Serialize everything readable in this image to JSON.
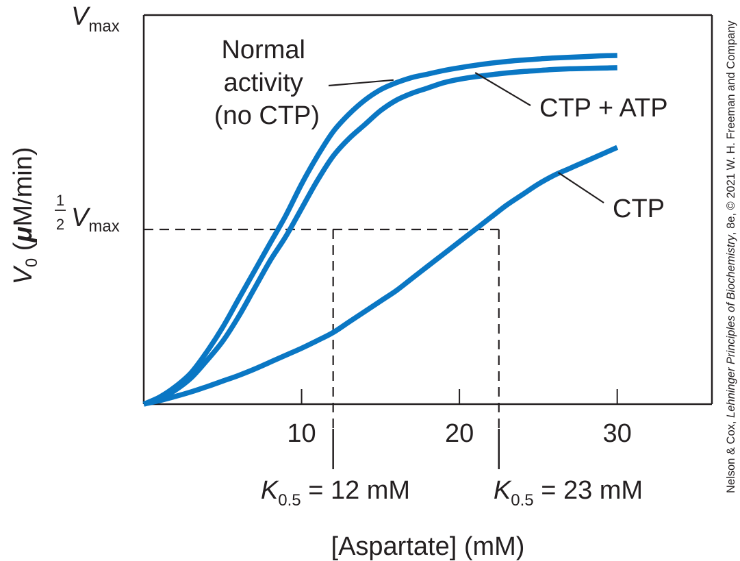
{
  "chart_data": {
    "type": "line",
    "xlabel": "[Aspartate] (mM)",
    "ylabel": "V0 (μM/min)",
    "ylabel_parts": {
      "v": "V",
      "sub": "0",
      "rest_prefix": " (",
      "mu": "μ",
      "rest_suffix": "M/min)"
    },
    "xlim": [
      0,
      36
    ],
    "ylim": [
      0,
      1
    ],
    "x_ticks": [
      10,
      20,
      30
    ],
    "x_tick_labels": [
      "10",
      "20",
      "30"
    ],
    "y_tick_labels": {
      "vmax": {
        "v": "V",
        "sub": "max"
      },
      "half_vmax": {
        "num": "1",
        "den": "2",
        "v": "V",
        "sub": "max"
      }
    },
    "x": [
      0,
      1,
      2,
      3,
      4,
      5,
      6,
      7,
      8,
      9,
      10,
      11,
      12,
      13,
      14,
      15,
      16,
      17,
      18,
      19,
      20,
      21,
      22,
      23,
      24,
      25,
      26,
      27,
      28,
      29,
      30
    ],
    "series": [
      {
        "name": "Normal activity (no CTP)",
        "color": "#0a77c4",
        "values": [
          0.0,
          0.02,
          0.05,
          0.09,
          0.15,
          0.22,
          0.3,
          0.38,
          0.46,
          0.54,
          0.63,
          0.71,
          0.78,
          0.83,
          0.87,
          0.9,
          0.92,
          0.935,
          0.945,
          0.955,
          0.963,
          0.97,
          0.976,
          0.981,
          0.985,
          0.988,
          0.991,
          0.993,
          0.995,
          0.997,
          0.998
        ]
      },
      {
        "name": "CTP + ATP",
        "color": "#0a77c4",
        "values": [
          0.0,
          0.015,
          0.04,
          0.075,
          0.125,
          0.18,
          0.25,
          0.33,
          0.41,
          0.48,
          0.56,
          0.64,
          0.71,
          0.76,
          0.8,
          0.84,
          0.87,
          0.89,
          0.905,
          0.92,
          0.93,
          0.937,
          0.943,
          0.948,
          0.952,
          0.955,
          0.958,
          0.96,
          0.961,
          0.962,
          0.963
        ]
      },
      {
        "name": "CTP",
        "color": "#0a77c4",
        "values": [
          0.0,
          0.01,
          0.022,
          0.035,
          0.05,
          0.066,
          0.082,
          0.1,
          0.12,
          0.14,
          0.16,
          0.182,
          0.205,
          0.235,
          0.265,
          0.295,
          0.325,
          0.36,
          0.395,
          0.43,
          0.465,
          0.5,
          0.535,
          0.57,
          0.6,
          0.63,
          0.655,
          0.675,
          0.695,
          0.715,
          0.735
        ]
      }
    ],
    "half_vmax_value": 0.5,
    "k_markers": [
      {
        "x": 12,
        "label_k": "K",
        "label_sub": "0.5",
        "label_rest": " = 12 mM"
      },
      {
        "x": 22.5,
        "label_k": "K",
        "label_sub": "0.5",
        "label_rest": " = 23 mM"
      }
    ],
    "annotations": [
      {
        "series": "Normal activity (no CTP)",
        "lines": [
          "Normal",
          "activity",
          "(no CTP)"
        ]
      },
      {
        "series": "CTP + ATP",
        "lines": [
          "CTP + ATP"
        ]
      },
      {
        "series": "CTP",
        "lines": [
          "CTP"
        ]
      }
    ],
    "grid": false,
    "legend": "none"
  },
  "credit": {
    "authors": "Nelson & Cox, ",
    "book": "Lehninger Principles of Biochemistry",
    "rest": ", 8e, © 2021 W. H. Freeman and Company"
  },
  "colors": {
    "curve": "#0a77c4",
    "ink": "#231f20"
  }
}
